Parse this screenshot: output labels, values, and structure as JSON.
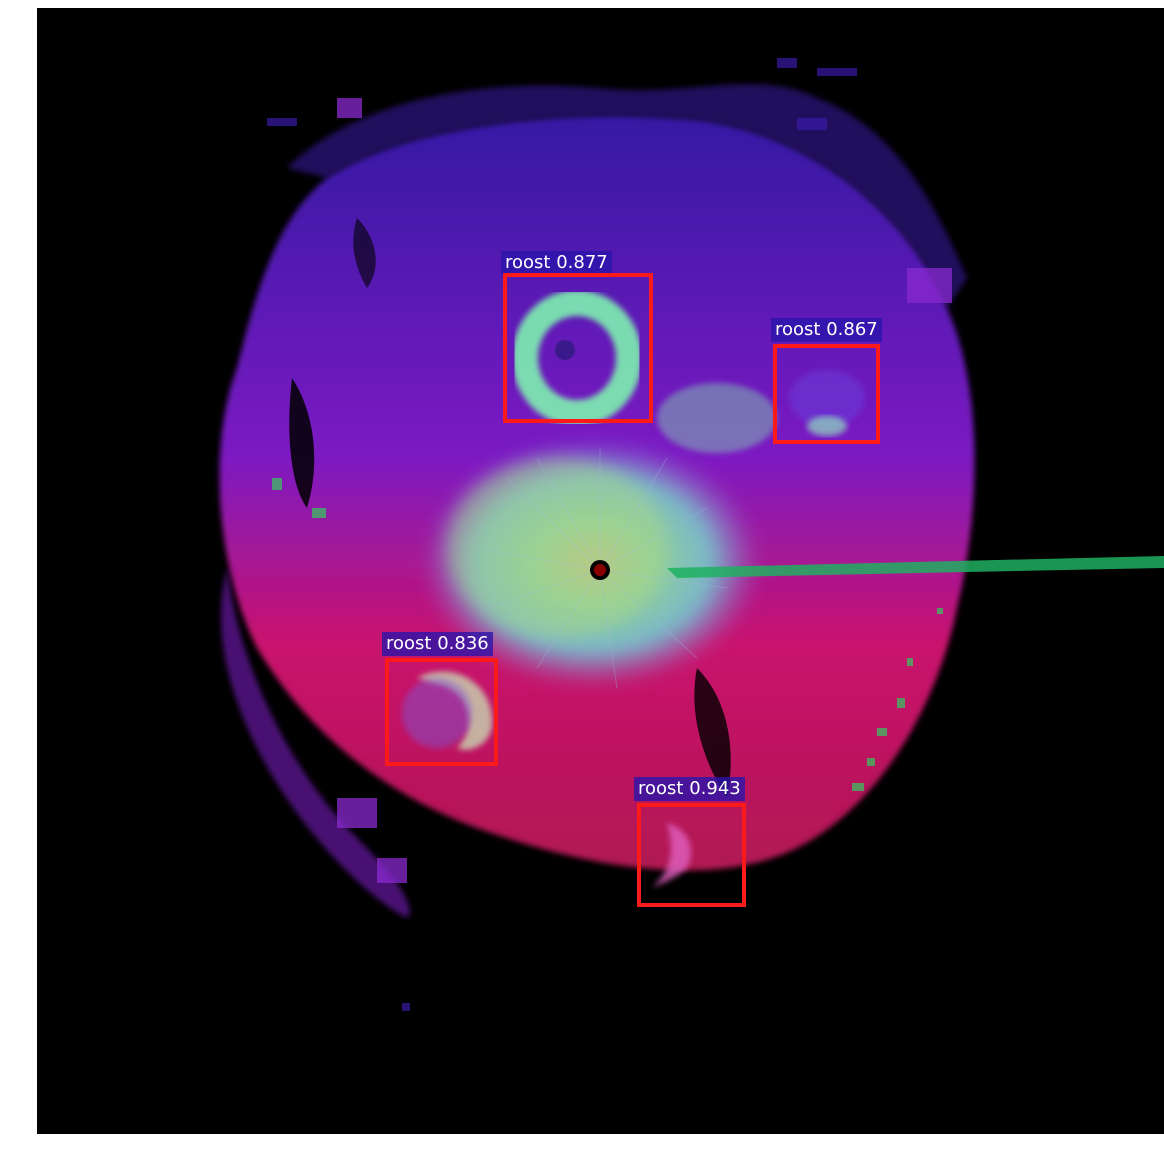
{
  "detections": [
    {
      "label": "roost 0.877",
      "class": "roost",
      "score": 0.877
    },
    {
      "label": "roost 0.867",
      "class": "roost",
      "score": 0.867
    },
    {
      "label": "roost 0.836",
      "class": "roost",
      "score": 0.836
    },
    {
      "label": "roost 0.943",
      "class": "roost",
      "score": 0.943
    }
  ],
  "colors": {
    "box": "#ff1a1a",
    "label_bg": "#2814aa",
    "label_text": "#ffffff",
    "background": "#000000"
  }
}
